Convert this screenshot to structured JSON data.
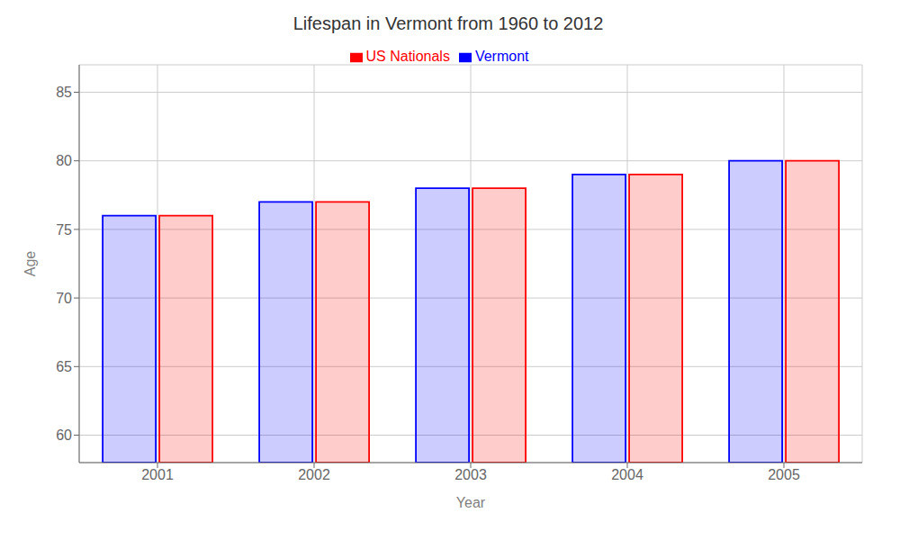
{
  "chart_data": {
    "type": "bar",
    "title": "Lifespan in Vermont from 1960 to 2012",
    "x_label": "Year",
    "y_label": "Age",
    "categories": [
      "2001",
      "2002",
      "2003",
      "2004",
      "2005"
    ],
    "series": [
      {
        "name": "Vermont",
        "color": "#0000ff",
        "values": [
          76,
          77,
          78,
          79,
          80
        ]
      },
      {
        "name": "US Nationals",
        "color": "#ff0000",
        "values": [
          76,
          77,
          78,
          79,
          80
        ]
      }
    ],
    "ylim": [
      58,
      87
    ],
    "yticks": [
      60,
      65,
      70,
      75,
      80,
      85
    ],
    "grid": true,
    "legend": "top"
  }
}
